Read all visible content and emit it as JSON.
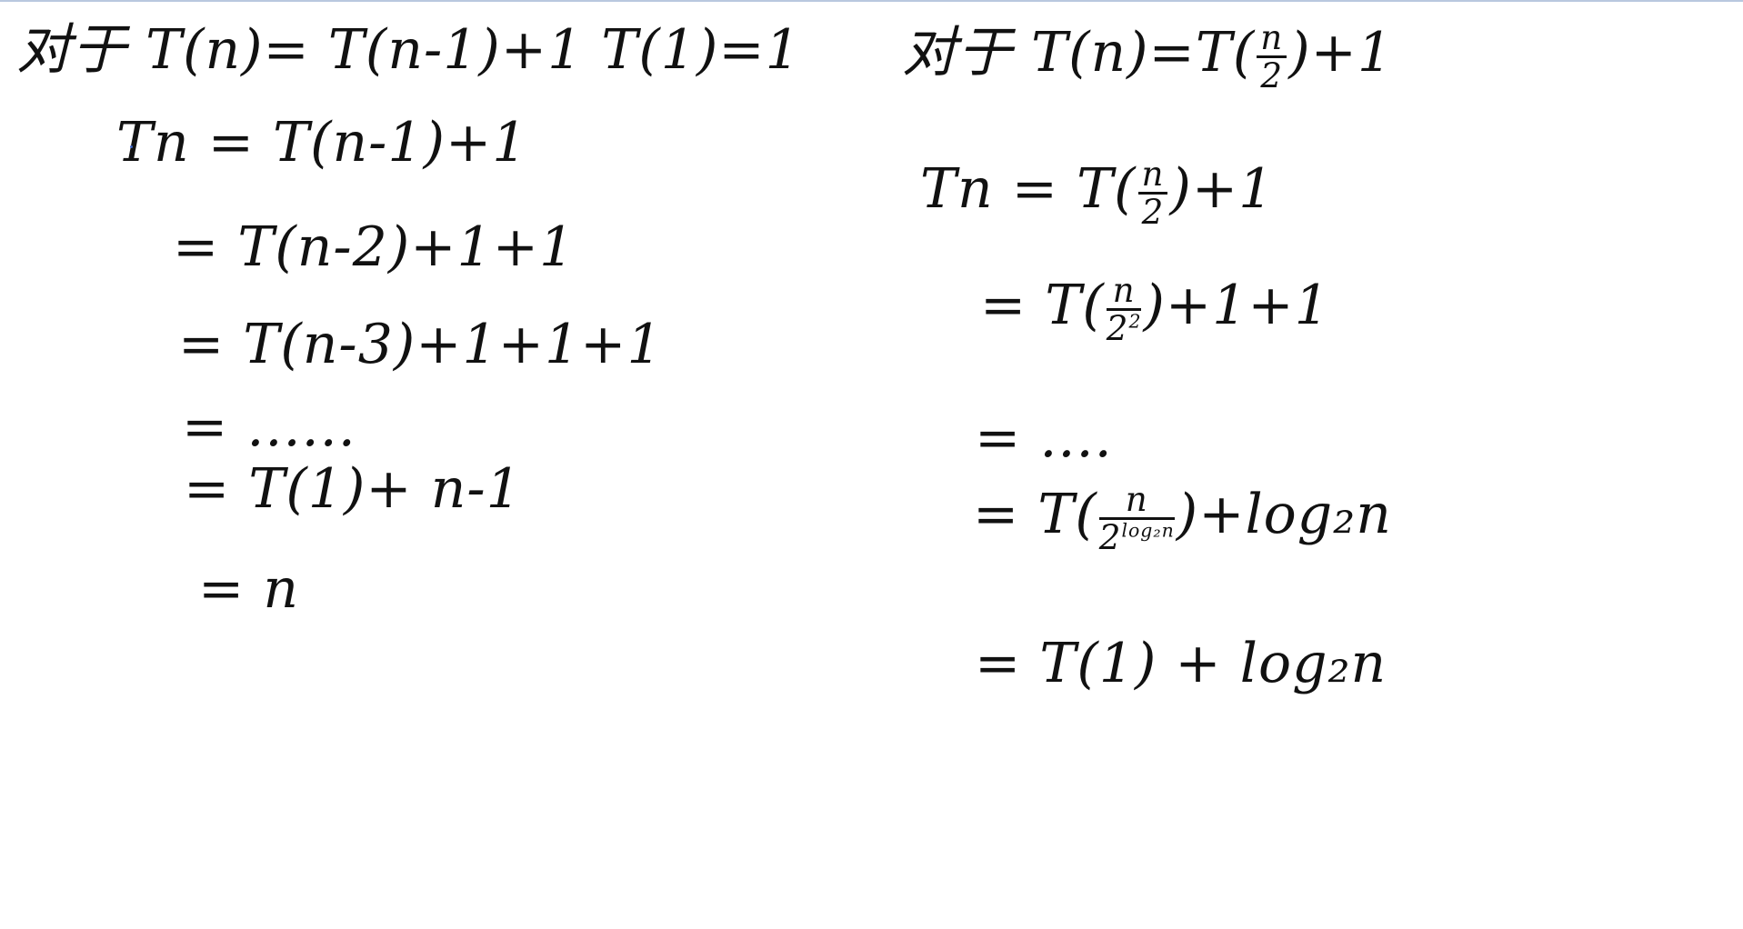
{
  "left": {
    "header": "对于  T(n)= T(n-1)+1   T(1)=1",
    "steps": [
      "Tn =  T(n-1)+1",
      "= T(n-2)+1+1",
      "= T(n-3)+1+1+1",
      "=  ......",
      "= T(1)+ n-1",
      "=  n"
    ]
  },
  "right": {
    "header_prefix": "对于 T(n)=T(",
    "header_num": "n",
    "header_den": "2",
    "header_suffix": ")+1",
    "step1_prefix": "Tn = T(",
    "step1_num": "n",
    "step1_den": "2",
    "step1_suffix": ")+1",
    "step2_prefix": "= T(",
    "step2_num": "n",
    "step2_den_base": "2",
    "step2_den_exp": "2",
    "step2_suffix": ")+1+1",
    "step3": "= ....",
    "step4_prefix": "= T(",
    "step4_num": "n",
    "step4_den_base": "2",
    "step4_den_exp": "log₂n",
    "step4_suffix": ")+log₂n",
    "step5": "= T(1) + log₂n"
  }
}
